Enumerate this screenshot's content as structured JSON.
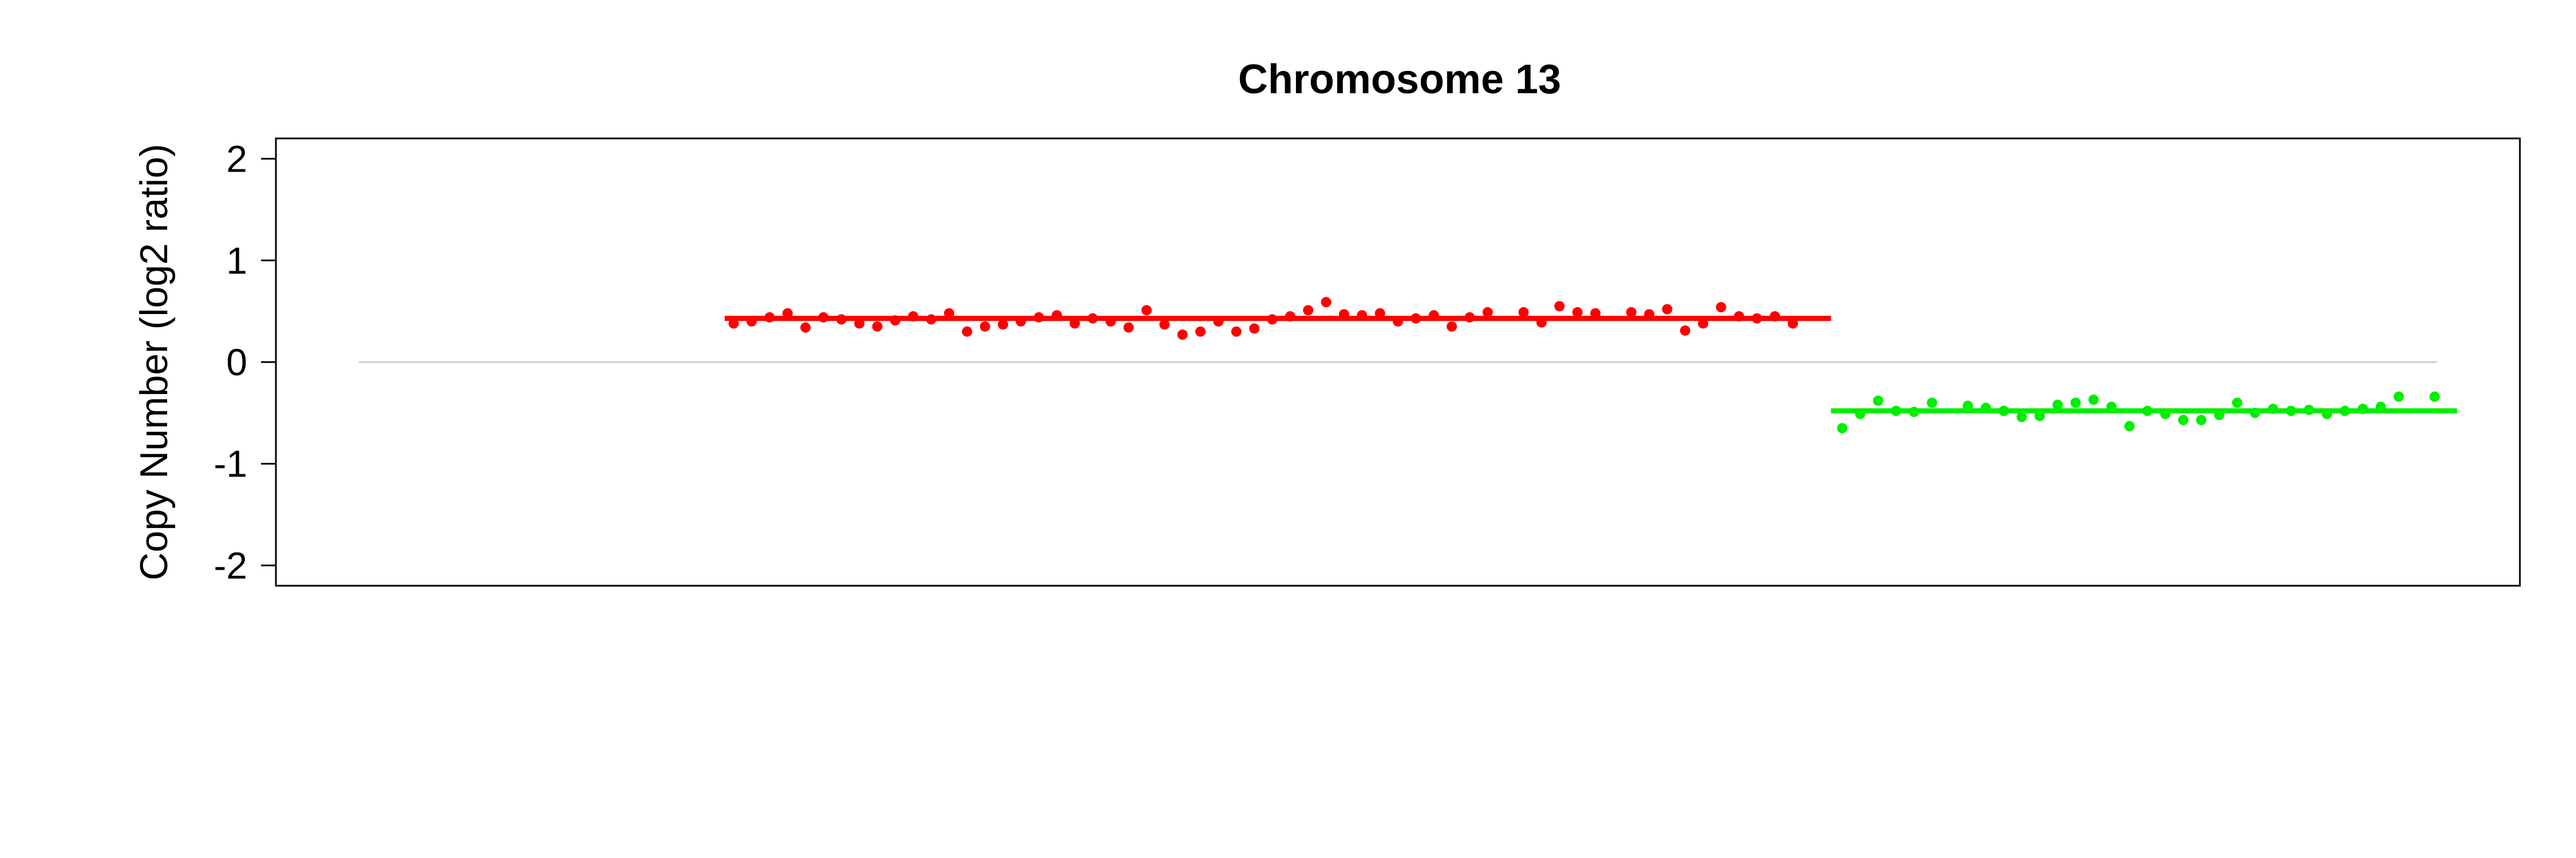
{
  "chart_data": {
    "type": "scatter",
    "title": "Chromosome 13",
    "xlabel": "",
    "ylabel": "Copy Number (log2 ratio)",
    "ylim": [
      -2.2,
      2.2
    ],
    "xlim": [
      0,
      100
    ],
    "yticks": [
      -2,
      -1,
      0,
      1,
      2
    ],
    "ytick_labels": [
      "-2",
      "-1",
      "0",
      "1",
      "2"
    ],
    "reference_line": {
      "y": 0,
      "x_start": 3.7,
      "x_end": 96.3,
      "color": "#cccccc"
    },
    "grid": false,
    "legend": "none",
    "series": [
      {
        "color": "#ff0000",
        "segment": {
          "x_start": 20.0,
          "x_end": 69.3,
          "y": 0.43
        },
        "points": [
          [
            20.4,
            0.38
          ],
          [
            21.2,
            0.4
          ],
          [
            22.0,
            0.44
          ],
          [
            22.8,
            0.48
          ],
          [
            23.6,
            0.34
          ],
          [
            24.4,
            0.44
          ],
          [
            25.2,
            0.42
          ],
          [
            26.0,
            0.38
          ],
          [
            26.8,
            0.35
          ],
          [
            27.6,
            0.41
          ],
          [
            28.4,
            0.45
          ],
          [
            29.2,
            0.42
          ],
          [
            30.0,
            0.48
          ],
          [
            30.8,
            0.3
          ],
          [
            31.6,
            0.35
          ],
          [
            32.4,
            0.37
          ],
          [
            33.2,
            0.4
          ],
          [
            34.0,
            0.44
          ],
          [
            34.8,
            0.46
          ],
          [
            35.6,
            0.38
          ],
          [
            36.4,
            0.43
          ],
          [
            37.2,
            0.4
          ],
          [
            38.0,
            0.34
          ],
          [
            38.8,
            0.51
          ],
          [
            39.6,
            0.37
          ],
          [
            40.4,
            0.27
          ],
          [
            41.2,
            0.3
          ],
          [
            42.0,
            0.4
          ],
          [
            42.8,
            0.3
          ],
          [
            43.6,
            0.33
          ],
          [
            44.4,
            0.42
          ],
          [
            45.2,
            0.45
          ],
          [
            46.0,
            0.51
          ],
          [
            46.8,
            0.59
          ],
          [
            47.6,
            0.47
          ],
          [
            48.4,
            0.46
          ],
          [
            49.2,
            0.48
          ],
          [
            50.0,
            0.4
          ],
          [
            50.8,
            0.43
          ],
          [
            51.6,
            0.46
          ],
          [
            52.4,
            0.35
          ],
          [
            53.2,
            0.44
          ],
          [
            54.0,
            0.49
          ],
          [
            55.6,
            0.49
          ],
          [
            56.4,
            0.39
          ],
          [
            57.2,
            0.55
          ],
          [
            58.0,
            0.49
          ],
          [
            58.8,
            0.48
          ],
          [
            60.4,
            0.49
          ],
          [
            61.2,
            0.47
          ],
          [
            62.0,
            0.52
          ],
          [
            62.8,
            0.31
          ],
          [
            63.6,
            0.38
          ],
          [
            64.4,
            0.54
          ],
          [
            65.2,
            0.45
          ],
          [
            66.0,
            0.43
          ],
          [
            66.8,
            0.45
          ],
          [
            67.6,
            0.38
          ]
        ]
      },
      {
        "color": "#00ee00",
        "segment": {
          "x_start": 69.3,
          "x_end": 97.2,
          "y": -0.48
        },
        "points": [
          [
            69.8,
            -0.65
          ],
          [
            70.6,
            -0.51
          ],
          [
            71.4,
            -0.38
          ],
          [
            72.2,
            -0.48
          ],
          [
            73.0,
            -0.49
          ],
          [
            73.8,
            -0.4
          ],
          [
            75.4,
            -0.43
          ],
          [
            76.2,
            -0.45
          ],
          [
            77.0,
            -0.48
          ],
          [
            77.8,
            -0.54
          ],
          [
            78.6,
            -0.53
          ],
          [
            79.4,
            -0.42
          ],
          [
            80.2,
            -0.4
          ],
          [
            81.0,
            -0.37
          ],
          [
            81.8,
            -0.44
          ],
          [
            82.6,
            -0.63
          ],
          [
            83.4,
            -0.48
          ],
          [
            84.2,
            -0.51
          ],
          [
            85.0,
            -0.57
          ],
          [
            85.8,
            -0.57
          ],
          [
            86.6,
            -0.52
          ],
          [
            87.4,
            -0.4
          ],
          [
            88.2,
            -0.5
          ],
          [
            89.0,
            -0.46
          ],
          [
            89.8,
            -0.48
          ],
          [
            90.6,
            -0.47
          ],
          [
            91.4,
            -0.51
          ],
          [
            92.2,
            -0.48
          ],
          [
            93.0,
            -0.46
          ],
          [
            93.8,
            -0.44
          ],
          [
            94.6,
            -0.34
          ],
          [
            96.2,
            -0.34
          ]
        ]
      }
    ]
  }
}
